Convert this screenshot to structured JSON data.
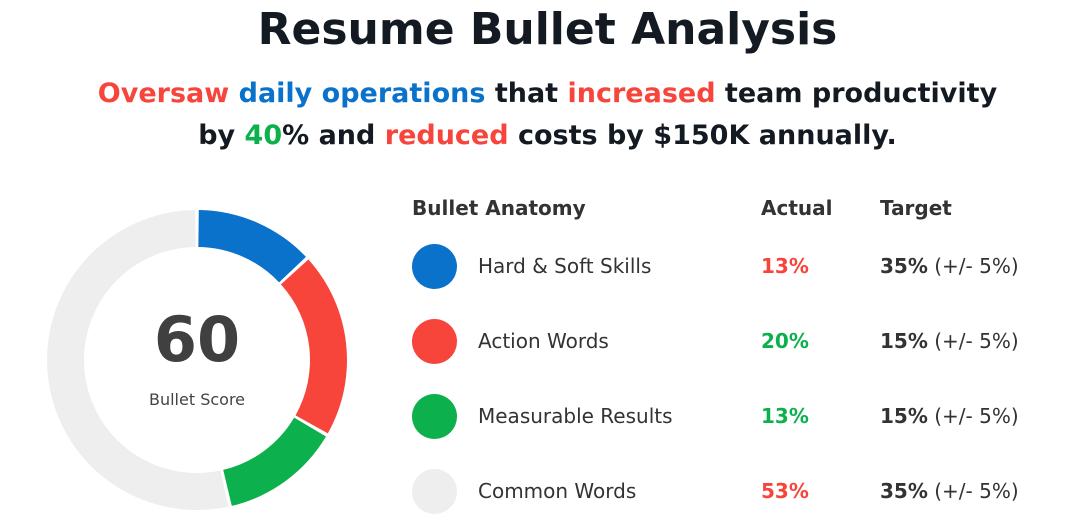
{
  "header": {
    "title": "Resume Bullet Analysis"
  },
  "bullet_text": {
    "line1": [
      {
        "text": "Oversaw",
        "color": "red"
      },
      {
        "text": " ",
        "color": "dark"
      },
      {
        "text": "daily operations",
        "color": "blue"
      },
      {
        "text": " that ",
        "color": "dark"
      },
      {
        "text": "increased",
        "color": "red"
      },
      {
        "text": " team productivity",
        "color": "dark"
      }
    ],
    "line2": [
      {
        "text": "by ",
        "color": "dark"
      },
      {
        "text": "40",
        "color": "green"
      },
      {
        "text": "% and ",
        "color": "dark"
      },
      {
        "text": "reduced",
        "color": "red"
      },
      {
        "text": " costs by $150K annually.",
        "color": "dark"
      }
    ]
  },
  "score": {
    "value": "60",
    "label": "Bullet Score"
  },
  "table": {
    "headers": {
      "anatomy": "Bullet Anatomy",
      "actual": "Actual",
      "target": "Target"
    },
    "rows": [
      {
        "label": "Hard & Soft Skills",
        "actual": "13%",
        "actual_status": "bad",
        "target": "35%",
        "tolerance": "(+/- 5%)",
        "color": "#0b72cc"
      },
      {
        "label": "Action Words",
        "actual": "20%",
        "actual_status": "good",
        "target": "15%",
        "tolerance": "(+/- 5%)",
        "color": "#f7453c"
      },
      {
        "label": "Measurable Results",
        "actual": "13%",
        "actual_status": "good",
        "target": "15%",
        "tolerance": "(+/- 5%)",
        "color": "#0cb04c"
      },
      {
        "label": "Common Words",
        "actual": "53%",
        "actual_status": "bad",
        "target": "35%",
        "tolerance": "(+/- 5%)",
        "color": "#eeeeee"
      }
    ]
  },
  "colors": {
    "red": "#f7453c",
    "blue": "#0b72cc",
    "green": "#0cb04c",
    "grey": "#eeeeee",
    "dark": "#141a22",
    "bad": "#f7453c",
    "good": "#0cb04c"
  },
  "chart_data": {
    "type": "pie",
    "subtype": "donut",
    "title": "Bullet Score",
    "center_value": 60,
    "center_label": "Bullet Score",
    "categories": [
      "Hard & Soft Skills",
      "Action Words",
      "Measurable Results",
      "Common Words"
    ],
    "values": [
      13,
      20,
      13,
      53
    ],
    "colors": [
      "#0b72cc",
      "#f7453c",
      "#0cb04c",
      "#eeeeee"
    ],
    "start_angle": "12 o'clock",
    "direction": "clockwise",
    "targets": [
      35,
      15,
      15,
      35
    ],
    "target_tolerance": 5,
    "legend_position": "right"
  }
}
